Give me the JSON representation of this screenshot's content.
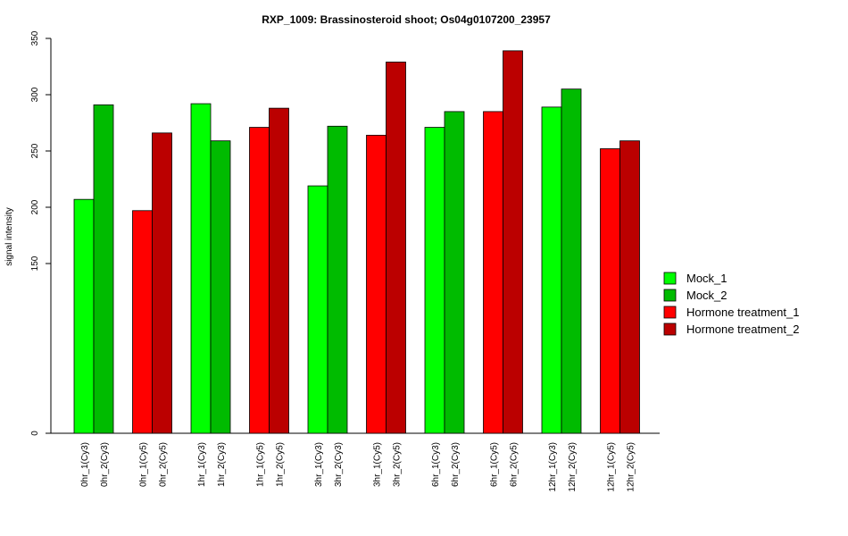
{
  "chart_data": {
    "type": "bar",
    "title": "RXP_1009: Brassinosteroid shoot; Os04g0107200_23957",
    "ylabel": "signal intensity",
    "xlabel": "",
    "ylim": [
      0,
      350
    ],
    "axis_break": "between 0 and 150",
    "yticks": [
      0,
      150,
      200,
      250,
      300,
      350
    ],
    "grid": false,
    "legend_position": "right",
    "series": [
      {
        "name": "Mock_1",
        "color": "#00ff00"
      },
      {
        "name": "Mock_2",
        "color": "#00bb00"
      },
      {
        "name": "Hormone treatment_1",
        "color": "#ff0000"
      },
      {
        "name": "Hormone treatment_2",
        "color": "#bb0000"
      }
    ],
    "bars": [
      {
        "label": "0hr_1(Cy3)",
        "value": 207,
        "series": 0
      },
      {
        "label": "0hr_2(Cy3)",
        "value": 291,
        "series": 1
      },
      {
        "label": "0hr_1(Cy5)",
        "value": 197,
        "series": 2
      },
      {
        "label": "0hr_2(Cy5)",
        "value": 266,
        "series": 3
      },
      {
        "label": "1hr_1(Cy3)",
        "value": 292,
        "series": 0
      },
      {
        "label": "1hr_2(Cy3)",
        "value": 259,
        "series": 1
      },
      {
        "label": "1hr_1(Cy5)",
        "value": 271,
        "series": 2
      },
      {
        "label": "1hr_2(Cy5)",
        "value": 288,
        "series": 3
      },
      {
        "label": "3hr_1(Cy3)",
        "value": 219,
        "series": 0
      },
      {
        "label": "3hr_2(Cy3)",
        "value": 272,
        "series": 1
      },
      {
        "label": "3hr_1(Cy5)",
        "value": 264,
        "series": 2
      },
      {
        "label": "3hr_2(Cy5)",
        "value": 329,
        "series": 3
      },
      {
        "label": "6hr_1(Cy3)",
        "value": 271,
        "series": 0
      },
      {
        "label": "6hr_2(Cy3)",
        "value": 285,
        "series": 1
      },
      {
        "label": "6hr_1(Cy5)",
        "value": 285,
        "series": 2
      },
      {
        "label": "6hr_2(Cy5)",
        "value": 339,
        "series": 3
      },
      {
        "label": "12hr_1(Cy3)",
        "value": 289,
        "series": 0
      },
      {
        "label": "12hr_2(Cy3)",
        "value": 305,
        "series": 1
      },
      {
        "label": "12hr_1(Cy5)",
        "value": 252,
        "series": 2
      },
      {
        "label": "12hr_2(Cy5)",
        "value": 259,
        "series": 3
      }
    ]
  }
}
